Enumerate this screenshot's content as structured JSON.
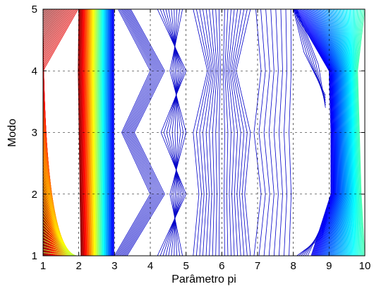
{
  "chart_data": {
    "type": "contour",
    "title": "",
    "xlabel": "Parâmetro pi",
    "ylabel": "Modo",
    "xlim": [
      1,
      10
    ],
    "ylim": [
      1,
      5
    ],
    "x_ticks": [
      1,
      2,
      3,
      4,
      5,
      6,
      7,
      8,
      9,
      10
    ],
    "y_ticks": [
      1,
      2,
      3,
      4,
      5
    ],
    "grid": true,
    "grid_style": "dashed",
    "legend": "none",
    "colormap": "jet",
    "contour_levels": 80,
    "bands": [
      {
        "from_x": 1,
        "to_x": 2,
        "colors": "red to yellow-green"
      },
      {
        "from_x": 2,
        "to_x": 3,
        "colors": "red to blue"
      },
      {
        "from_x": 3,
        "to_x": 8.5,
        "colors": "dark blue"
      },
      {
        "from_x": 8.5,
        "to_x": 10,
        "colors": "blue to cyan"
      }
    ],
    "colors": {
      "low": "#00008f",
      "mid": "#00ffff",
      "high": "#800000"
    }
  }
}
